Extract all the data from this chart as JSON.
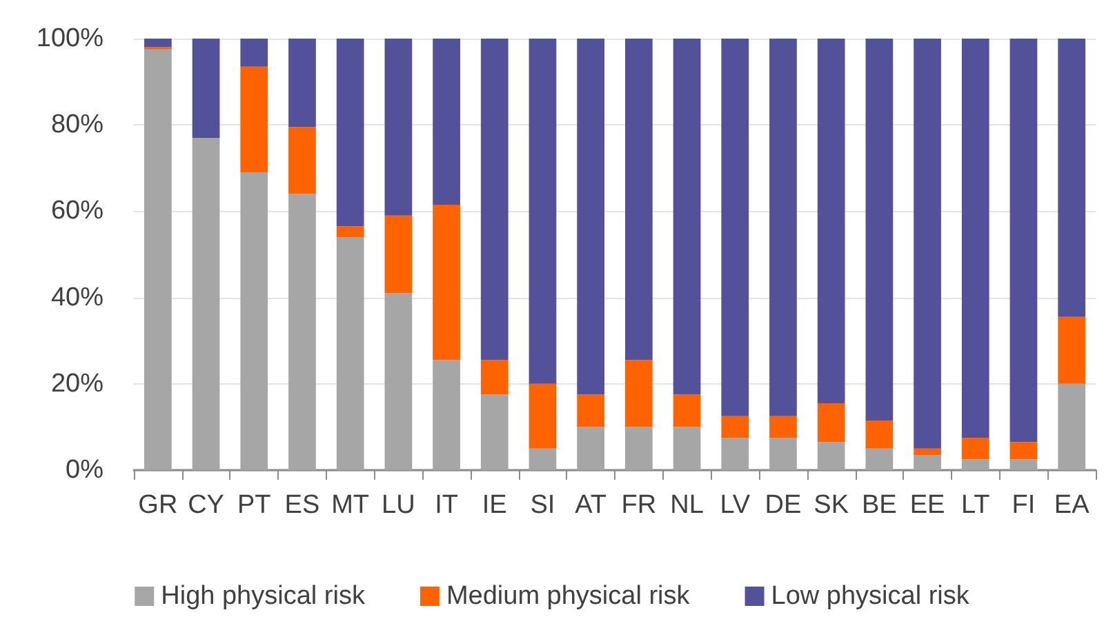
{
  "chart_data": {
    "type": "bar",
    "stacked": true,
    "categories": [
      "GR",
      "CY",
      "PT",
      "ES",
      "MT",
      "LU",
      "IT",
      "IE",
      "SI",
      "AT",
      "FR",
      "NL",
      "LV",
      "DE",
      "SK",
      "BE",
      "EE",
      "LT",
      "FI",
      "EA"
    ],
    "series": [
      {
        "name": "High physical risk",
        "color": "#a6a6a6",
        "values": [
          97.5,
          77,
          69,
          64,
          54,
          41,
          25.5,
          17.5,
          5,
          10,
          10,
          10,
          7.5,
          7.5,
          6.5,
          5,
          3.5,
          2.5,
          2.5,
          20
        ]
      },
      {
        "name": "Medium physical risk",
        "color": "#ff6200",
        "values": [
          0.5,
          0,
          24.5,
          15.5,
          2.5,
          18,
          36,
          8,
          15,
          7.5,
          15.5,
          7.5,
          5,
          5,
          9,
          6.5,
          1.5,
          5,
          4,
          15.5
        ]
      },
      {
        "name": "Low physical risk",
        "color": "#525199",
        "values": [
          2,
          23,
          6.5,
          20.5,
          43.5,
          41,
          38.5,
          74.5,
          80,
          82.5,
          74.5,
          82.5,
          87.5,
          87.5,
          84.5,
          88.5,
          95,
          92.5,
          93.5,
          64.5
        ]
      }
    ],
    "ylim": [
      0,
      100
    ],
    "yticks": [
      {
        "value": 0,
        "label": "0%"
      },
      {
        "value": 20,
        "label": "20%"
      },
      {
        "value": 40,
        "label": "40%"
      },
      {
        "value": 60,
        "label": "60%"
      },
      {
        "value": 80,
        "label": "80%"
      },
      {
        "value": 100,
        "label": "100%"
      }
    ],
    "grid": "y",
    "legend": "bottom"
  }
}
